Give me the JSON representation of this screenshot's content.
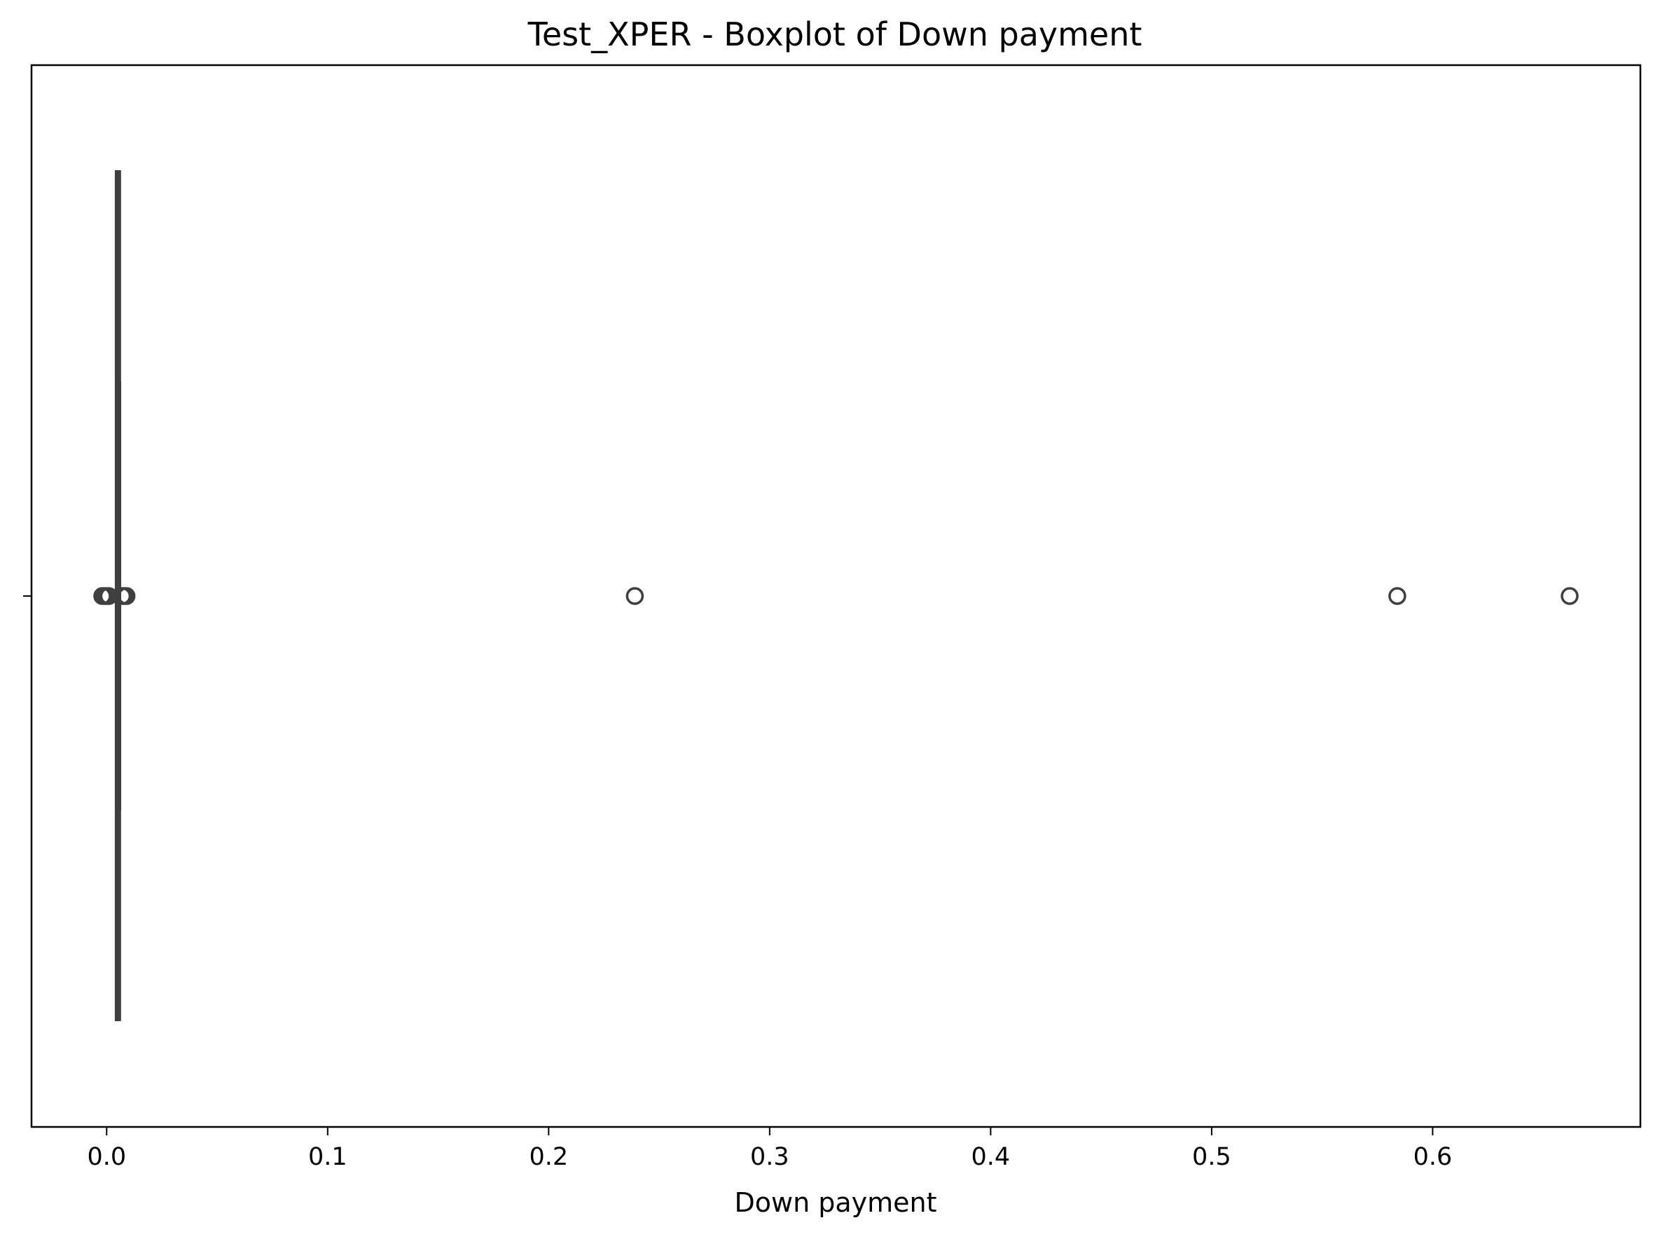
{
  "chart_data": {
    "type": "boxplot",
    "title": "Test_XPER - Boxplot of Down payment",
    "xlabel": "Down payment",
    "ylabel": "",
    "orientation": "horizontal",
    "xlim": [
      -0.034,
      0.694
    ],
    "xticks": [
      0.0,
      0.1,
      0.2,
      0.3,
      0.4,
      0.5,
      0.6
    ],
    "xtick_labels": [
      "0.0",
      "0.1",
      "0.2",
      "0.3",
      "0.4",
      "0.5",
      "0.6"
    ],
    "grid": false,
    "box": {
      "whisker_low": 0.0048,
      "q1": 0.005,
      "median": 0.0051,
      "q3": 0.0052,
      "whisker_high": 0.0054
    },
    "outliers": [
      -0.002,
      -0.001,
      0.0,
      0.001,
      0.007,
      0.008,
      0.009,
      0.239,
      0.584,
      0.662
    ],
    "colors": {
      "box_edge": "#3f3f3f",
      "axis": "#000000",
      "background": "#ffffff"
    }
  }
}
